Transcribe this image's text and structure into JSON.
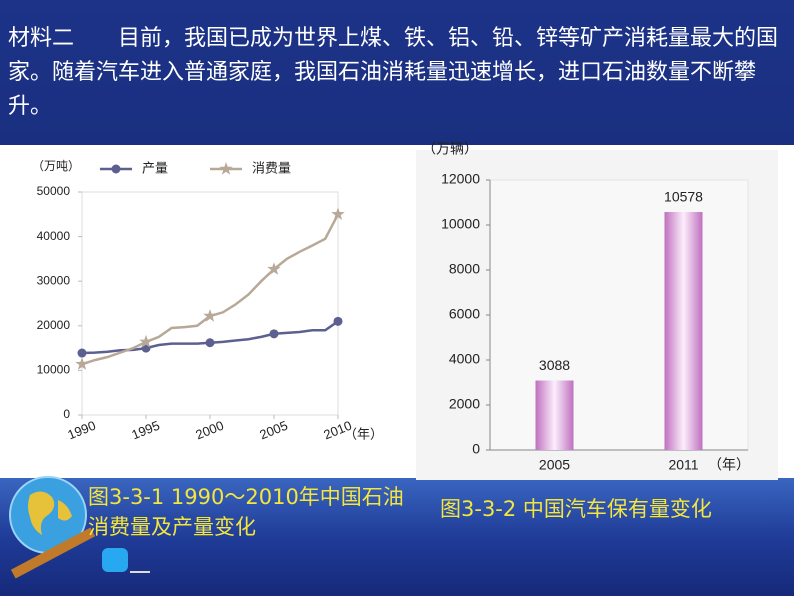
{
  "material": {
    "text": "材料二　　目前，我国已成为世界上煤、铁、铝、铅、锌等矿产消耗量最大的国家。随着汽车进入普通家庭，我国石油消耗量迅速增长，进口石油数量不断攀升。"
  },
  "chart_data": [
    {
      "type": "line",
      "y_unit": "（万吨）",
      "x_unit": "（年）",
      "x": [
        1990,
        1991,
        1992,
        1993,
        1994,
        1995,
        1996,
        1997,
        1998,
        1999,
        2000,
        2001,
        2002,
        2003,
        2004,
        2005,
        2006,
        2007,
        2008,
        2009,
        2010
      ],
      "xlim": [
        1990,
        2010
      ],
      "xticks": [
        1990,
        1995,
        2000,
        2005,
        2010
      ],
      "ylim": [
        0,
        50000
      ],
      "yticks": [
        0,
        10000,
        20000,
        30000,
        40000,
        50000
      ],
      "series": [
        {
          "name": "产量",
          "color": "#5c6090",
          "marker": "circle",
          "values": [
            13900,
            14000,
            14200,
            14500,
            14600,
            15000,
            15700,
            16000,
            16000,
            16000,
            16200,
            16400,
            16700,
            17000,
            17500,
            18200,
            18400,
            18600,
            19000,
            19000,
            21000
          ]
        },
        {
          "name": "消费量",
          "color": "#b8a898",
          "marker": "star",
          "values": [
            11400,
            12300,
            13000,
            14000,
            15000,
            16400,
            17500,
            19500,
            19700,
            20000,
            22200,
            23000,
            24800,
            27000,
            30000,
            32700,
            35000,
            36600,
            38000,
            39500,
            45000
          ]
        }
      ],
      "caption": "图3-3-1 1990～2010年中国石油消费量及产量变化"
    },
    {
      "type": "bar",
      "y_unit": "（万辆）",
      "x_unit": "（年）",
      "categories": [
        "2005",
        "2011"
      ],
      "values": [
        3088,
        10578
      ],
      "color": "#c070c0",
      "ylim": [
        0,
        12000
      ],
      "yticks": [
        0,
        2000,
        4000,
        6000,
        8000,
        10000,
        12000
      ],
      "caption": "图3-3-2 中国汽车保有量变化"
    }
  ]
}
